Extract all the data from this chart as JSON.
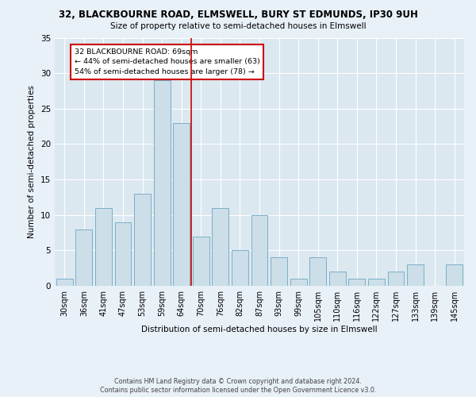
{
  "title": "32, BLACKBOURNE ROAD, ELMSWELL, BURY ST EDMUNDS, IP30 9UH",
  "subtitle": "Size of property relative to semi-detached houses in Elmswell",
  "xlabel": "Distribution of semi-detached houses by size in Elmswell",
  "ylabel": "Number of semi-detached properties",
  "categories": [
    "30sqm",
    "36sqm",
    "41sqm",
    "47sqm",
    "53sqm",
    "59sqm",
    "64sqm",
    "70sqm",
    "76sqm",
    "82sqm",
    "87sqm",
    "93sqm",
    "99sqm",
    "105sqm",
    "110sqm",
    "116sqm",
    "122sqm",
    "127sqm",
    "133sqm",
    "139sqm",
    "145sqm"
  ],
  "values": [
    1,
    8,
    11,
    9,
    13,
    29,
    23,
    7,
    11,
    5,
    10,
    4,
    1,
    4,
    2,
    1,
    1,
    2,
    3,
    0,
    3
  ],
  "bar_color": "#ccdee8",
  "bar_edge_color": "#7aafc8",
  "highlight_line_color": "#cc0000",
  "annotation_text": "32 BLACKBOURNE ROAD: 69sqm\n← 44% of semi-detached houses are smaller (63)\n54% of semi-detached houses are larger (78) →",
  "annotation_box_color": "#ffffff",
  "annotation_box_edge_color": "#cc0000",
  "ylim": [
    0,
    35
  ],
  "yticks": [
    0,
    5,
    10,
    15,
    20,
    25,
    30,
    35
  ],
  "background_color": "#dce8f0",
  "fig_background_color": "#e8f0f8",
  "footnote1": "Contains HM Land Registry data © Crown copyright and database right 2024.",
  "footnote2": "Contains public sector information licensed under the Open Government Licence v3.0."
}
